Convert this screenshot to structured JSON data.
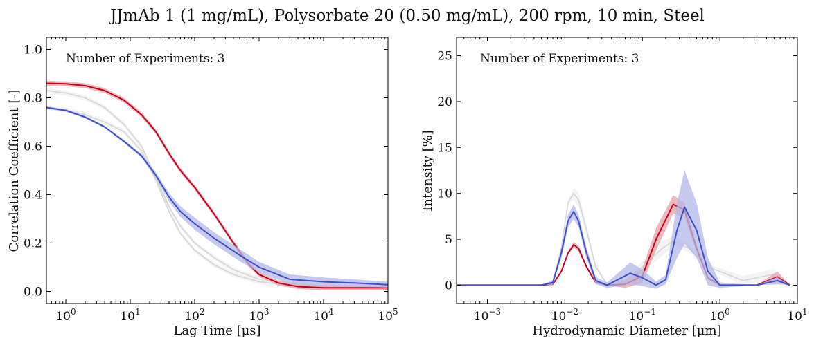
{
  "figure": {
    "title": "JJmAb 1 (1 mg/mL), Polysorbate 20 (0.50 mg/mL), 200 rpm, 10 min, Steel"
  },
  "colors": {
    "red": "#c4001f",
    "red_band": "#e7a2a6",
    "blue": "#3f4fc9",
    "blue_band": "#b3b8e8",
    "gray": "#d6d6d6",
    "gray_band": "#ececec"
  },
  "chart_data": [
    {
      "type": "line",
      "xlabel": "Lag Time [μs]",
      "ylabel": "Correlation Coefficient [-]",
      "xscale": "log",
      "xlim": [
        0.5,
        100000
      ],
      "ylim": [
        -0.05,
        1.05
      ],
      "xticks": [
        1,
        10,
        100,
        1000,
        10000,
        100000
      ],
      "xtick_labels": [
        {
          "base": "10",
          "exp": "0"
        },
        {
          "base": "10",
          "exp": "1"
        },
        {
          "base": "10",
          "exp": "2"
        },
        {
          "base": "10",
          "exp": "3"
        },
        {
          "base": "10",
          "exp": "4"
        },
        {
          "base": "10",
          "exp": "5"
        }
      ],
      "yticks": [
        0.0,
        0.2,
        0.4,
        0.6,
        0.8,
        1.0
      ],
      "ytick_labels": [
        "0.0",
        "0.2",
        "0.4",
        "0.6",
        "0.8",
        "1.0"
      ],
      "annotation": "Number of Experiments: 3",
      "grid": false,
      "series": [
        {
          "color": "gray",
          "band": 0.01,
          "x": [
            0.5,
            1,
            2,
            4,
            8,
            15,
            25,
            40,
            60,
            100,
            200,
            400,
            1000,
            3000,
            10000,
            100000
          ],
          "y": [
            0.83,
            0.82,
            0.8,
            0.76,
            0.69,
            0.6,
            0.47,
            0.35,
            0.27,
            0.2,
            0.14,
            0.09,
            0.05,
            0.03,
            0.02,
            0.015
          ]
        },
        {
          "color": "gray",
          "band": 0.01,
          "x": [
            0.5,
            1,
            2,
            4,
            8,
            15,
            25,
            40,
            60,
            100,
            200,
            400,
            1000,
            3000,
            10000,
            100000
          ],
          "y": [
            0.76,
            0.75,
            0.73,
            0.7,
            0.66,
            0.58,
            0.46,
            0.33,
            0.24,
            0.17,
            0.11,
            0.07,
            0.04,
            0.025,
            0.02,
            0.015
          ]
        },
        {
          "color": "red",
          "band": 0.01,
          "x": [
            0.5,
            1,
            2,
            4,
            8,
            15,
            25,
            40,
            60,
            100,
            200,
            400,
            700,
            1000,
            2000,
            4000,
            10000,
            100000
          ],
          "y": [
            0.86,
            0.858,
            0.85,
            0.83,
            0.79,
            0.73,
            0.66,
            0.57,
            0.5,
            0.43,
            0.32,
            0.2,
            0.11,
            0.07,
            0.035,
            0.02,
            0.015,
            0.015
          ]
        },
        {
          "color": "blue",
          "band": [
            0.005,
            0.005,
            0.005,
            0.005,
            0.006,
            0.008,
            0.012,
            0.018,
            0.022,
            0.025,
            0.025,
            0.025,
            0.022,
            0.02,
            0.018,
            0.015,
            0.012
          ],
          "x": [
            0.5,
            1,
            2,
            4,
            8,
            15,
            25,
            40,
            60,
            100,
            200,
            500,
            1000,
            3000,
            10000,
            30000,
            100000
          ],
          "y": [
            0.76,
            0.748,
            0.72,
            0.68,
            0.62,
            0.56,
            0.48,
            0.39,
            0.33,
            0.28,
            0.22,
            0.15,
            0.1,
            0.05,
            0.04,
            0.035,
            0.028
          ]
        }
      ]
    },
    {
      "type": "line",
      "xlabel": "Hydrodynamic Diameter [μm]",
      "ylabel": "Intensity [%]",
      "xscale": "log",
      "xlim": [
        0.0004,
        10
      ],
      "ylim": [
        -2,
        27
      ],
      "xticks": [
        0.001,
        0.01,
        0.1,
        1,
        10
      ],
      "xtick_labels": [
        {
          "base": "10",
          "exp": "−3"
        },
        {
          "base": "10",
          "exp": "−2"
        },
        {
          "base": "10",
          "exp": "−1"
        },
        {
          "base": "10",
          "exp": "0"
        },
        {
          "base": "10",
          "exp": "1"
        }
      ],
      "yticks": [
        0,
        5,
        10,
        15,
        20,
        25
      ],
      "ytick_labels": [
        "0",
        "5",
        "10",
        "15",
        "20",
        "25"
      ],
      "annotation": "Number of Experiments: 3",
      "grid": false,
      "series": [
        {
          "color": "gray",
          "band": [
            0,
            0,
            0,
            0,
            0.3,
            0.6,
            0.8,
            0.6,
            0.3,
            0.1,
            0.3,
            0.6,
            0.8,
            0.6,
            0.4,
            0.3,
            0.5,
            0.6,
            0
          ],
          "x": [
            0.0004,
            0.005,
            0.007,
            0.009,
            0.011,
            0.013,
            0.015,
            0.019,
            0.025,
            0.035,
            0.06,
            0.1,
            0.18,
            0.25,
            0.4,
            0.7,
            2,
            5,
            8
          ],
          "y": [
            0,
            0,
            0.3,
            4,
            9,
            10,
            9.3,
            6,
            2,
            0.1,
            0.5,
            2,
            4,
            4.8,
            4,
            2,
            0.5,
            1.2,
            0
          ]
        },
        {
          "color": "red",
          "band": [
            0,
            0,
            0,
            0,
            0.2,
            0.3,
            0.3,
            0.2,
            0.1,
            0,
            0.4,
            0.8,
            1.2,
            1,
            0.8,
            0.4,
            0.2,
            0,
            0,
            0.6,
            0
          ],
          "x": [
            0.0004,
            0.005,
            0.007,
            0.009,
            0.011,
            0.013,
            0.015,
            0.019,
            0.025,
            0.035,
            0.06,
            0.1,
            0.15,
            0.25,
            0.35,
            0.5,
            0.7,
            1,
            3,
            5.5,
            8
          ],
          "y": [
            0,
            0,
            0.1,
            1.5,
            3.5,
            4.4,
            4,
            2,
            0.3,
            0,
            0.1,
            1,
            5,
            8.8,
            8.2,
            4,
            0.8,
            0,
            0,
            0.9,
            0
          ]
        },
        {
          "color": "blue",
          "band": [
            0,
            0,
            0.3,
            0.6,
            0.7,
            0.8,
            0.7,
            0.6,
            0.4,
            0.3,
            1.2,
            0.9,
            0.4,
            0.5,
            3,
            4,
            3,
            1.5,
            0.3,
            0,
            0.4,
            0
          ],
          "x": [
            0.0004,
            0.005,
            0.007,
            0.009,
            0.011,
            0.013,
            0.015,
            0.019,
            0.025,
            0.035,
            0.07,
            0.1,
            0.15,
            0.2,
            0.28,
            0.35,
            0.5,
            0.7,
            1,
            3,
            5.5,
            8
          ],
          "y": [
            0,
            0,
            0.3,
            3.5,
            7,
            8,
            7,
            3.5,
            0.5,
            0,
            1.3,
            0.8,
            0,
            0.6,
            6,
            8.5,
            6,
            1.5,
            0,
            0,
            0.5,
            0
          ]
        }
      ]
    }
  ]
}
